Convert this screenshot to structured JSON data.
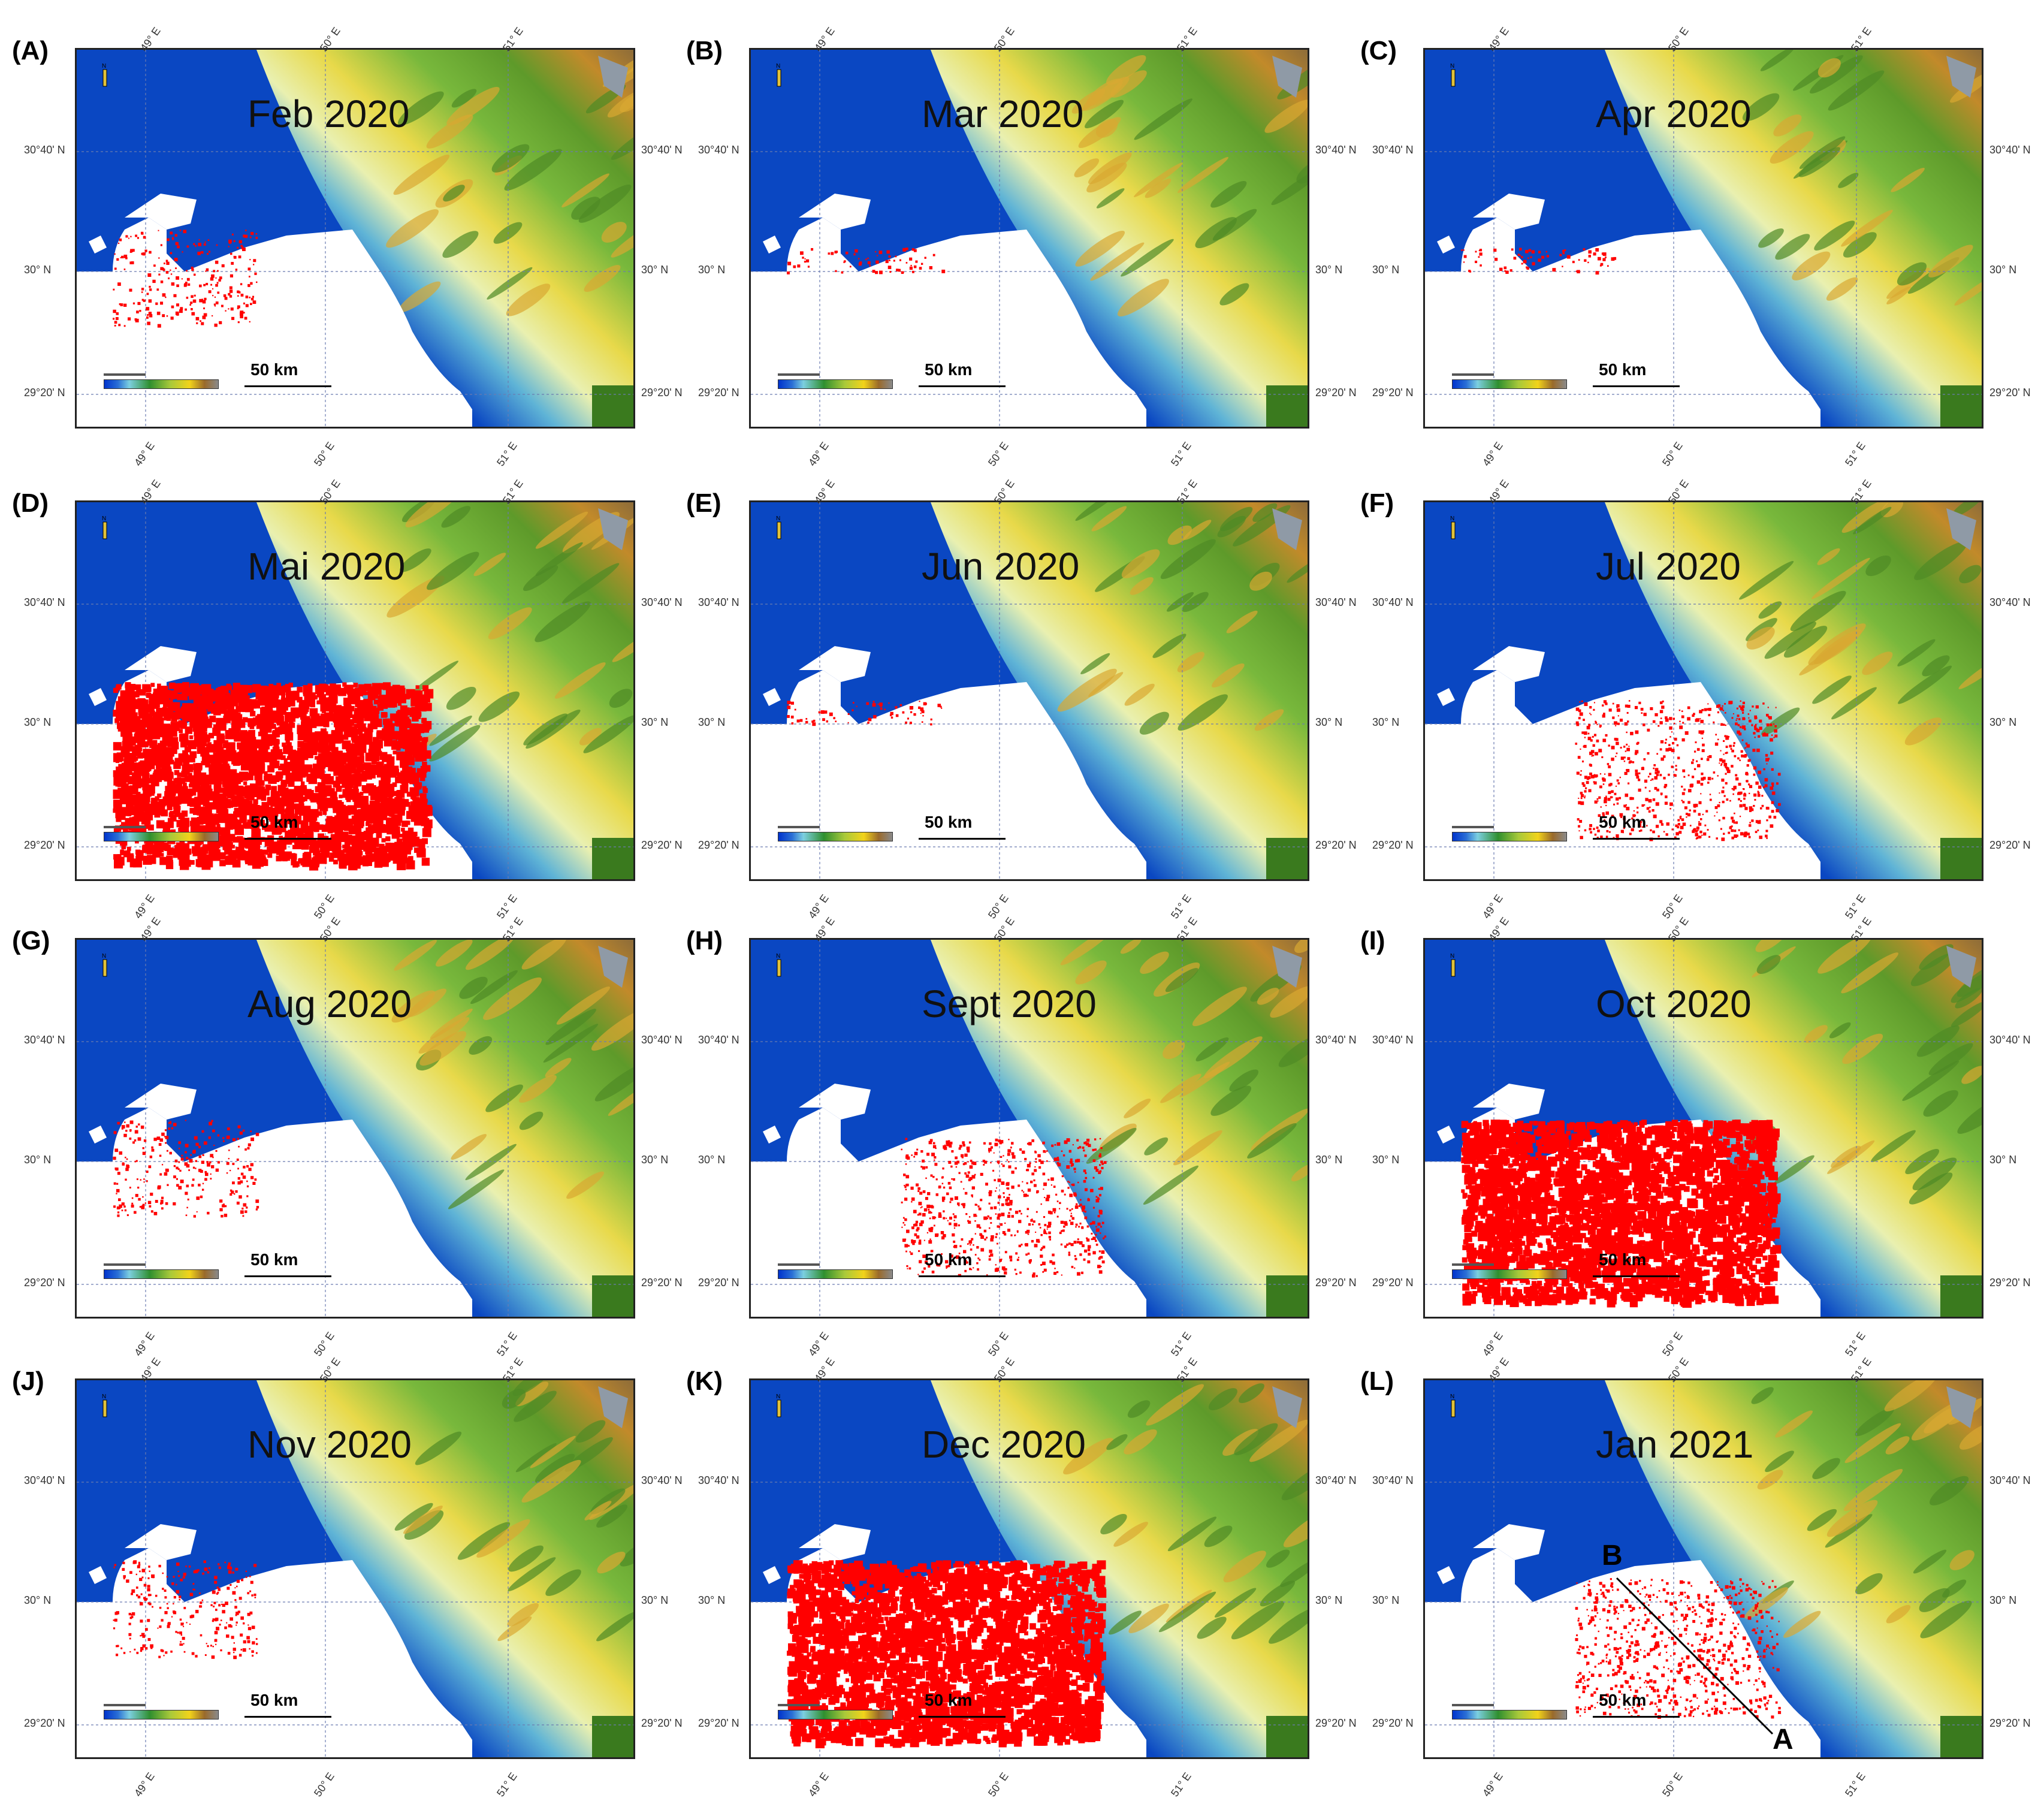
{
  "panels": [
    {
      "id": "(A)",
      "title": "Feb 2020"
    },
    {
      "id": "(B)",
      "title": "Mar 2020"
    },
    {
      "id": "(C)",
      "title": "Apr 2020"
    },
    {
      "id": "(D)",
      "title": "Mai 2020"
    },
    {
      "id": "(E)",
      "title": "Jun 2020"
    },
    {
      "id": "(F)",
      "title": "Jul 2020"
    },
    {
      "id": "(G)",
      "title": "Aug 2020"
    },
    {
      "id": "(H)",
      "title": "Sept 2020"
    },
    {
      "id": "(I)",
      "title": "Oct 2020"
    },
    {
      "id": "(J)",
      "title": "Nov 2020"
    },
    {
      "id": "(K)",
      "title": "Dec 2020"
    },
    {
      "id": "(L)",
      "title": "Jan 2021"
    }
  ],
  "scale_label": "50 km",
  "lat_labels": [
    "30°40' N",
    "30° N",
    "29°20' N"
  ],
  "lon_labels": [
    "49° E",
    "50° E",
    "51° E"
  ],
  "profile_labels": {
    "start": "B",
    "end": "A"
  },
  "colors": {
    "sea": "#0a47c2",
    "spill": "#ff0000",
    "land_low": "#5fb4d6",
    "land_mid": "#78b83c",
    "land_high": "#e8d94a",
    "mountain": "#c28a2a"
  },
  "spill_extent": [
    "small",
    "minimal",
    "minimal",
    "large",
    "minimal",
    "medium",
    "small",
    "medium",
    "large",
    "small",
    "large",
    "medium"
  ]
}
